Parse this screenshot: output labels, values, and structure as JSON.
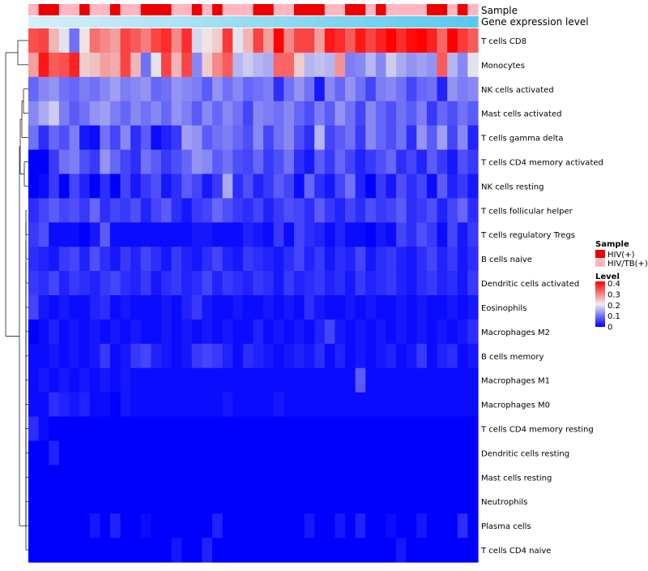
{
  "chart_data": {
    "type": "heatmap",
    "annotation_rows": [
      "Sample",
      "Gene expression level"
    ],
    "rows": [
      "T cells CD8",
      "Monocytes",
      "NK cells activated",
      "Mast cells activated",
      "T cells gamma delta",
      "T cells CD4 memory activated",
      "NK cells resting",
      "T cells follicular helper",
      "T cells regulatory  Tregs",
      "B cells naive",
      "Dendritic cells activated",
      "Eosinophils",
      "Macrophages M2",
      "B cells memory",
      "Macrophages M1",
      "Macrophages M0",
      "T cells CD4 memory resting",
      "Dendritic cells resting",
      "Mast cells resting",
      "Neutrophils",
      "Plasma cells",
      "T cells CD4 naive"
    ],
    "n_columns": 44,
    "sample_groups": [
      1,
      0,
      0,
      1,
      1,
      0,
      1,
      1,
      0,
      1,
      1,
      0,
      0,
      0,
      1,
      1,
      0,
      1,
      0,
      1,
      1,
      1,
      0,
      0,
      1,
      1,
      0,
      0,
      0,
      1,
      1,
      0,
      0,
      1,
      0,
      1,
      1,
      1,
      1,
      0,
      0,
      1,
      0,
      1
    ],
    "gene_expression_gradient": [
      "#d6eef8",
      "#5ac8ee"
    ],
    "values": [
      [
        0.35,
        0.36,
        0.26,
        0.2,
        0.1,
        0.22,
        0.32,
        0.3,
        0.28,
        0.36,
        0.34,
        0.31,
        0.36,
        0.38,
        0.3,
        0.38,
        0.19,
        0.22,
        0.24,
        0.37,
        0.2,
        0.26,
        0.36,
        0.28,
        0.42,
        0.3,
        0.36,
        0.36,
        0.28,
        0.4,
        0.38,
        0.34,
        0.4,
        0.36,
        0.39,
        0.42,
        0.38,
        0.41,
        0.42,
        0.39,
        0.33,
        0.42,
        0.37,
        0.34
      ],
      [
        0.28,
        0.4,
        0.34,
        0.35,
        0.39,
        0.24,
        0.25,
        0.28,
        0.27,
        0.36,
        0.26,
        0.1,
        0.2,
        0.36,
        0.26,
        0.36,
        0.12,
        0.24,
        0.3,
        0.34,
        0.16,
        0.18,
        0.16,
        0.15,
        0.33,
        0.33,
        0.24,
        0.16,
        0.17,
        0.16,
        0.29,
        0.11,
        0.12,
        0.16,
        0.12,
        0.18,
        0.15,
        0.13,
        0.14,
        0.13,
        0.34,
        0.16,
        0.12,
        0.2
      ],
      [
        0.09,
        0.12,
        0.13,
        0.1,
        0.09,
        0.11,
        0.1,
        0.12,
        0.14,
        0.11,
        0.12,
        0.13,
        0.09,
        0.1,
        0.13,
        0.12,
        0.11,
        0.08,
        0.13,
        0.1,
        0.12,
        0.09,
        0.1,
        0.11,
        0.04,
        0.1,
        0.13,
        0.1,
        0.02,
        0.12,
        0.09,
        0.13,
        0.1,
        0.06,
        0.11,
        0.12,
        0.1,
        0.06,
        0.09,
        0.1,
        0.03,
        0.13,
        0.11,
        0.12
      ],
      [
        0.12,
        0.15,
        0.18,
        0.11,
        0.08,
        0.1,
        0.13,
        0.14,
        0.11,
        0.09,
        0.12,
        0.1,
        0.12,
        0.09,
        0.13,
        0.11,
        0.08,
        0.12,
        0.09,
        0.12,
        0.1,
        0.06,
        0.12,
        0.11,
        0.1,
        0.12,
        0.09,
        0.07,
        0.11,
        0.08,
        0.13,
        0.1,
        0.06,
        0.12,
        0.09,
        0.07,
        0.1,
        0.08,
        0.11,
        0.05,
        0.09,
        0.07,
        0.1,
        0.08
      ],
      [
        0.1,
        0.04,
        0.09,
        0.07,
        0.11,
        0.02,
        0.01,
        0.1,
        0.06,
        0.12,
        0.04,
        0.08,
        0.01,
        0.03,
        0.05,
        0.14,
        0.13,
        0.08,
        0.1,
        0.11,
        0.09,
        0.07,
        0.12,
        0.06,
        0.1,
        0.12,
        0.07,
        0.04,
        0.16,
        0.06,
        0.08,
        0.1,
        0.05,
        0.12,
        0.09,
        0.07,
        0.1,
        0.04,
        0.13,
        0.08,
        0.14,
        0.06,
        0.12,
        0.03
      ],
      [
        0.0,
        0.0,
        0.05,
        0.1,
        0.11,
        0.07,
        0.05,
        0.13,
        0.09,
        0.06,
        0.04,
        0.1,
        0.08,
        0.05,
        0.07,
        0.09,
        0.13,
        0.12,
        0.08,
        0.1,
        0.07,
        0.06,
        0.09,
        0.05,
        0.07,
        0.1,
        0.04,
        0.02,
        0.08,
        0.05,
        0.09,
        0.06,
        0.03,
        0.05,
        0.07,
        0.09,
        0.04,
        0.06,
        0.03,
        0.08,
        0.05,
        0.02,
        0.07,
        0.05
      ],
      [
        0.0,
        0.01,
        0.05,
        0.0,
        0.06,
        0.03,
        0.0,
        0.04,
        0.0,
        0.06,
        0.02,
        0.05,
        0.07,
        0.02,
        0.04,
        0.08,
        0.06,
        0.02,
        0.05,
        0.15,
        0.04,
        0.07,
        0.03,
        0.05,
        0.08,
        0.06,
        0.01,
        0.09,
        0.04,
        0.02,
        0.06,
        0.1,
        0.03,
        0.0,
        0.05,
        0.02,
        0.07,
        0.04,
        0.06,
        0.01,
        0.08,
        0.03,
        0.05,
        0.02
      ],
      [
        0.04,
        0.06,
        0.08,
        0.06,
        0.07,
        0.05,
        0.09,
        0.04,
        0.06,
        0.05,
        0.07,
        0.03,
        0.06,
        0.08,
        0.04,
        0.02,
        0.05,
        0.06,
        0.09,
        0.07,
        0.05,
        0.04,
        0.06,
        0.03,
        0.05,
        0.07,
        0.06,
        0.04,
        0.08,
        0.05,
        0.03,
        0.06,
        0.04,
        0.07,
        0.05,
        0.06,
        0.08,
        0.04,
        0.05,
        0.07,
        0.03,
        0.06,
        0.09,
        0.04
      ],
      [
        0.05,
        0.07,
        0.01,
        0.01,
        0.01,
        0.0,
        0.02,
        0.08,
        0.01,
        0.01,
        0.01,
        0.01,
        0.01,
        0.01,
        0.01,
        0.01,
        0.02,
        0.02,
        0.01,
        0.01,
        0.01,
        0.03,
        0.02,
        0.01,
        0.05,
        0.01,
        0.06,
        0.04,
        0.03,
        0.01,
        0.03,
        0.01,
        0.01,
        0.0,
        0.02,
        0.01,
        0.06,
        0.04,
        0.07,
        0.05,
        0.01,
        0.06,
        0.02,
        0.05
      ],
      [
        0.04,
        0.03,
        0.02,
        0.05,
        0.06,
        0.03,
        0.07,
        0.04,
        0.02,
        0.05,
        0.03,
        0.06,
        0.04,
        0.02,
        0.05,
        0.03,
        0.02,
        0.04,
        0.06,
        0.03,
        0.02,
        0.05,
        0.04,
        0.03,
        0.02,
        0.04,
        0.06,
        0.03,
        0.05,
        0.02,
        0.04,
        0.03,
        0.06,
        0.02,
        0.04,
        0.05,
        0.03,
        0.02,
        0.04,
        0.06,
        0.03,
        0.05,
        0.02,
        0.04
      ],
      [
        0.05,
        0.04,
        0.06,
        0.03,
        0.05,
        0.04,
        0.03,
        0.05,
        0.06,
        0.04,
        0.03,
        0.05,
        0.02,
        0.04,
        0.05,
        0.03,
        0.04,
        0.06,
        0.03,
        0.05,
        0.04,
        0.03,
        0.05,
        0.04,
        0.02,
        0.05,
        0.03,
        0.04,
        0.05,
        0.03,
        0.04,
        0.02,
        0.05,
        0.03,
        0.04,
        0.05,
        0.03,
        0.02,
        0.04,
        0.05,
        0.03,
        0.04,
        0.02,
        0.05
      ],
      [
        0.06,
        0.02,
        0.01,
        0.02,
        0.01,
        0.01,
        0.03,
        0.04,
        0.01,
        0.02,
        0.01,
        0.01,
        0.01,
        0.02,
        0.01,
        0.03,
        0.05,
        0.02,
        0.01,
        0.01,
        0.02,
        0.01,
        0.01,
        0.02,
        0.01,
        0.02,
        0.01,
        0.04,
        0.02,
        0.01,
        0.01,
        0.02,
        0.01,
        0.02,
        0.01,
        0.01,
        0.02,
        0.01,
        0.02,
        0.01,
        0.01,
        0.02,
        0.01,
        0.02
      ],
      [
        0.0,
        0.01,
        0.03,
        0.01,
        0.02,
        0.01,
        0.02,
        0.01,
        0.02,
        0.01,
        0.02,
        0.01,
        0.01,
        0.02,
        0.01,
        0.02,
        0.01,
        0.02,
        0.01,
        0.02,
        0.01,
        0.01,
        0.03,
        0.01,
        0.02,
        0.01,
        0.02,
        0.01,
        0.03,
        0.06,
        0.02,
        0.01,
        0.02,
        0.01,
        0.02,
        0.01,
        0.02,
        0.01,
        0.02,
        0.01,
        0.02,
        0.01,
        0.02,
        0.04
      ],
      [
        0.01,
        0.01,
        0.02,
        0.01,
        0.02,
        0.01,
        0.02,
        0.05,
        0.01,
        0.02,
        0.05,
        0.06,
        0.03,
        0.02,
        0.01,
        0.02,
        0.05,
        0.06,
        0.05,
        0.03,
        0.01,
        0.04,
        0.03,
        0.02,
        0.01,
        0.02,
        0.03,
        0.02,
        0.04,
        0.01,
        0.03,
        0.01,
        0.02,
        0.01,
        0.02,
        0.03,
        0.01,
        0.02,
        0.05,
        0.01,
        0.03,
        0.04,
        0.01,
        0.02
      ],
      [
        0.01,
        0.02,
        0.01,
        0.02,
        0.01,
        0.02,
        0.01,
        0.02,
        0.01,
        0.02,
        0.01,
        0.01,
        0.01,
        0.01,
        0.01,
        0.01,
        0.01,
        0.01,
        0.01,
        0.01,
        0.01,
        0.01,
        0.01,
        0.01,
        0.01,
        0.01,
        0.01,
        0.01,
        0.01,
        0.01,
        0.01,
        0.01,
        0.08,
        0.01,
        0.01,
        0.01,
        0.01,
        0.01,
        0.01,
        0.01,
        0.01,
        0.01,
        0.01,
        0.01
      ],
      [
        0.01,
        0.01,
        0.04,
        0.03,
        0.02,
        0.03,
        0.01,
        0.01,
        0.0,
        0.02,
        0.01,
        0.01,
        0.01,
        0.01,
        0.01,
        0.01,
        0.01,
        0.01,
        0.01,
        0.02,
        0.01,
        0.01,
        0.01,
        0.01,
        0.02,
        0.01,
        0.01,
        0.01,
        0.01,
        0.01,
        0.01,
        0.01,
        0.01,
        0.01,
        0.01,
        0.01,
        0.01,
        0.01,
        0.01,
        0.01,
        0.01,
        0.01,
        0.01,
        0.01
      ],
      [
        0.04,
        0.01,
        0.0,
        0.0,
        0.0,
        0.0,
        0.0,
        0.0,
        0.0,
        0.0,
        0.0,
        0.0,
        0.0,
        0.0,
        0.0,
        0.0,
        0.0,
        0.0,
        0.0,
        0.0,
        0.0,
        0.0,
        0.0,
        0.0,
        0.0,
        0.0,
        0.0,
        0.0,
        0.0,
        0.0,
        0.0,
        0.0,
        0.0,
        0.0,
        0.0,
        0.0,
        0.0,
        0.0,
        0.0,
        0.0,
        0.0,
        0.0,
        0.0,
        0.0
      ],
      [
        0.0,
        0.0,
        0.03,
        0.0,
        0.0,
        0.0,
        0.0,
        0.0,
        0.0,
        0.0,
        0.0,
        0.0,
        0.0,
        0.0,
        0.0,
        0.0,
        0.0,
        0.0,
        0.0,
        0.0,
        0.0,
        0.0,
        0.0,
        0.0,
        0.0,
        0.0,
        0.0,
        0.0,
        0.0,
        0.0,
        0.0,
        0.0,
        0.0,
        0.0,
        0.0,
        0.0,
        0.0,
        0.0,
        0.0,
        0.0,
        0.0,
        0.0,
        0.0,
        0.0
      ],
      [
        0.0,
        0.0,
        0.0,
        0.0,
        0.0,
        0.0,
        0.0,
        0.0,
        0.0,
        0.0,
        0.0,
        0.0,
        0.0,
        0.0,
        0.0,
        0.0,
        0.0,
        0.0,
        0.0,
        0.0,
        0.0,
        0.0,
        0.0,
        0.0,
        0.0,
        0.0,
        0.0,
        0.0,
        0.0,
        0.0,
        0.0,
        0.0,
        0.0,
        0.0,
        0.0,
        0.0,
        0.0,
        0.0,
        0.0,
        0.0,
        0.0,
        0.0,
        0.0,
        0.0
      ],
      [
        0.0,
        0.0,
        0.0,
        0.0,
        0.0,
        0.0,
        0.0,
        0.0,
        0.0,
        0.0,
        0.0,
        0.0,
        0.0,
        0.0,
        0.0,
        0.0,
        0.0,
        0.0,
        0.0,
        0.0,
        0.0,
        0.0,
        0.0,
        0.0,
        0.0,
        0.0,
        0.0,
        0.0,
        0.0,
        0.0,
        0.0,
        0.0,
        0.0,
        0.0,
        0.0,
        0.0,
        0.0,
        0.0,
        0.0,
        0.0,
        0.0,
        0.0,
        0.0,
        0.0
      ],
      [
        0.0,
        0.0,
        0.0,
        0.0,
        0.0,
        0.0,
        0.02,
        0.0,
        0.03,
        0.0,
        0.0,
        0.01,
        0.0,
        0.0,
        0.0,
        0.0,
        0.0,
        0.0,
        0.03,
        0.0,
        0.0,
        0.0,
        0.0,
        0.0,
        0.0,
        0.0,
        0.0,
        0.02,
        0.0,
        0.0,
        0.02,
        0.0,
        0.03,
        0.0,
        0.0,
        0.01,
        0.0,
        0.0,
        0.02,
        0.0,
        0.0,
        0.0,
        0.04,
        0.0
      ],
      [
        0.0,
        0.0,
        0.0,
        0.0,
        0.0,
        0.0,
        0.0,
        0.0,
        0.0,
        0.0,
        0.0,
        0.0,
        0.0,
        0.0,
        0.02,
        0.0,
        0.0,
        0.03,
        0.0,
        0.0,
        0.0,
        0.0,
        0.0,
        0.0,
        0.0,
        0.0,
        0.0,
        0.0,
        0.0,
        0.0,
        0.0,
        0.0,
        0.0,
        0.0,
        0.0,
        0.0,
        0.02,
        0.0,
        0.0,
        0.0,
        0.0,
        0.0,
        0.0,
        0.0
      ]
    ],
    "legend_sample": {
      "title": "Sample",
      "items": [
        {
          "label": "HIV(+)",
          "color": "#ee0000"
        },
        {
          "label": "HIV/TB(+)",
          "color": "#ffb6c1"
        }
      ]
    },
    "legend_level": {
      "title": "Level",
      "ticks": [
        "0.4",
        "0.3",
        "0.2",
        "0.1",
        "0"
      ],
      "tick_values": [
        0.4,
        0.3,
        0.2,
        0.1,
        0
      ],
      "range": [
        0,
        0.42
      ],
      "colors": {
        "low": "#0000ff",
        "mid": "#eeeeee",
        "high": "#ff0000"
      }
    }
  }
}
